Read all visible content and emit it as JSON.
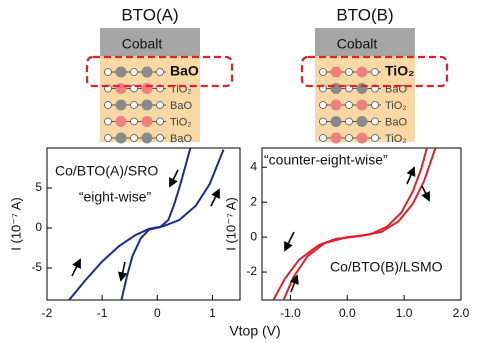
{
  "diagrams": [
    {
      "title": "BTO(A)",
      "cobalt": "Cobalt",
      "layers": [
        {
          "label": "BaO",
          "color": "#8a8a8a"
        },
        {
          "label": "TiO₂",
          "color": "#f08080"
        },
        {
          "label": "BaO",
          "color": "#8a8a8a"
        },
        {
          "label": "TiO₂",
          "color": "#f08080"
        },
        {
          "label": "BaO",
          "color": "#8a8a8a"
        }
      ]
    },
    {
      "title": "BTO(B)",
      "cobalt": "Cobalt",
      "layers": [
        {
          "label": "TiO₂",
          "color": "#f08080"
        },
        {
          "label": "BaO",
          "color": "#8a8a8a"
        },
        {
          "label": "TiO₂",
          "color": "#f08080"
        },
        {
          "label": "BaO",
          "color": "#8a8a8a"
        },
        {
          "label": "TiO₂",
          "color": "#f08080"
        }
      ]
    }
  ],
  "xlabel": "Vtop (V)",
  "chart_data": [
    {
      "type": "line",
      "ylabel": "I (10⁻⁷ A)",
      "annotations": [
        "Co/BTO(A)/SRO",
        "“eight-wise”"
      ],
      "xlim": [
        -2,
        1.5
      ],
      "xticks": [
        -2,
        -1,
        0,
        1
      ],
      "ylim": [
        -9,
        10
      ],
      "yticks": [
        -5,
        0,
        5
      ],
      "series": [
        {
          "color": "#1f2a8c",
          "x": [
            -1.6,
            -1.3,
            -1.0,
            -0.7,
            -0.4,
            -0.15,
            0.1,
            0.4,
            0.7,
            0.95,
            1.2
          ],
          "values": [
            -9,
            -6.5,
            -4.2,
            -2.3,
            -0.9,
            -0.1,
            0.2,
            1.0,
            2.8,
            5.5,
            9.8
          ]
        },
        {
          "color": "#1f2a8c",
          "x": [
            -0.65,
            -0.55,
            -0.45,
            -0.3,
            -0.15,
            0.05,
            0.2,
            0.3,
            0.4,
            0.5,
            0.6
          ],
          "values": [
            -9,
            -6,
            -3.5,
            -1.3,
            -0.2,
            0.1,
            1.0,
            2.8,
            5,
            7.5,
            10
          ]
        }
      ]
    },
    {
      "type": "line",
      "ylabel": "I (10⁻⁷ A)",
      "annotations": [
        "“counter-eight-wise”",
        "Co/BTO(B)/LSMO"
      ],
      "xlim": [
        -1.5,
        2
      ],
      "xticks": [
        {
          "value": -1,
          "label": "-1.0"
        },
        {
          "value": 0,
          "label": "0.0"
        },
        {
          "value": 1,
          "label": "1.0"
        },
        {
          "value": 2,
          "label": "2.0"
        }
      ],
      "ylim": [
        -3.6,
        5.1
      ],
      "yticks": [
        -2,
        0,
        2,
        4
      ],
      "series": [
        {
          "color": "#e0202a",
          "x": [
            -1.3,
            -1.1,
            -0.85,
            -0.5,
            -0.2,
            0.2,
            0.6,
            0.9,
            1.15,
            1.35,
            1.55
          ],
          "values": [
            -3.6,
            -2.4,
            -1.3,
            -0.45,
            -0.1,
            0.05,
            0.3,
            0.9,
            1.9,
            3.2,
            5.1
          ]
        },
        {
          "color": "#e0202a",
          "x": [
            -1.12,
            -0.95,
            -0.7,
            -0.4,
            0,
            0.4,
            0.7,
            0.95,
            1.15,
            1.3,
            1.4
          ],
          "values": [
            -3.6,
            -2.3,
            -1.1,
            -0.35,
            0,
            0.15,
            0.6,
            1.4,
            2.6,
            3.9,
            5.1
          ]
        }
      ]
    }
  ]
}
